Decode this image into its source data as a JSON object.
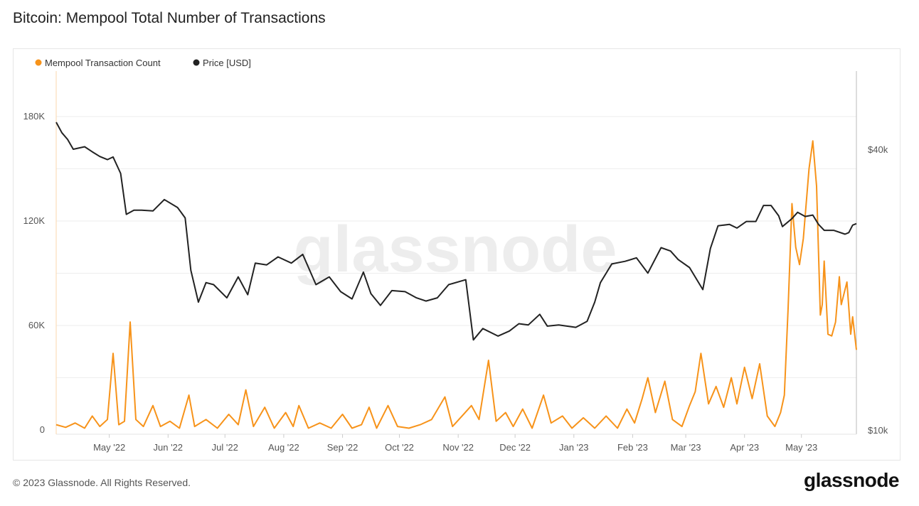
{
  "title": "Bitcoin: Mempool Total Number of Transactions",
  "footer": "© 2023 Glassnode. All Rights Reserved.",
  "logo": "glassnode",
  "watermark": "glassnode",
  "chart_data": {
    "type": "line",
    "title": "Bitcoin: Mempool Total Number of Transactions",
    "x_range": [
      "2022-04-03",
      "2023-05-30"
    ],
    "x_ticks": [
      {
        "date": "2022-05-01",
        "label": "May '22"
      },
      {
        "date": "2022-06-01",
        "label": "Jun '22"
      },
      {
        "date": "2022-07-01",
        "label": "Jul '22"
      },
      {
        "date": "2022-08-01",
        "label": "Aug '22"
      },
      {
        "date": "2022-09-01",
        "label": "Sep '22"
      },
      {
        "date": "2022-10-01",
        "label": "Oct '22"
      },
      {
        "date": "2022-11-01",
        "label": "Nov '22"
      },
      {
        "date": "2022-12-01",
        "label": "Dec '22"
      },
      {
        "date": "2023-01-01",
        "label": "Jan '23"
      },
      {
        "date": "2023-02-01",
        "label": "Feb '23"
      },
      {
        "date": "2023-03-01",
        "label": "Mar '23"
      },
      {
        "date": "2023-04-01",
        "label": "Apr '23"
      },
      {
        "date": "2023-05-01",
        "label": "May '23"
      }
    ],
    "y_left": {
      "scale": "linear",
      "range": [
        0,
        208000
      ],
      "ticks": [
        {
          "v": 0,
          "label": "0"
        },
        {
          "v": 60000,
          "label": "60K"
        },
        {
          "v": 120000,
          "label": "120K"
        },
        {
          "v": 180000,
          "label": "180K"
        }
      ]
    },
    "y_right": {
      "scale": "log",
      "range": [
        10000,
        53000
      ],
      "ticks": [
        {
          "v": 10000,
          "label": "$10k"
        },
        {
          "v": 40000,
          "label": "$40k"
        }
      ]
    },
    "grid": true,
    "legend_position": "top-left",
    "series": [
      {
        "name": "Mempool Transaction Count",
        "axis": "left",
        "color": "#f7931a",
        "points": [
          [
            "2022-04-03",
            3000
          ],
          [
            "2022-04-08",
            1500
          ],
          [
            "2022-04-13",
            4000
          ],
          [
            "2022-04-18",
            1000
          ],
          [
            "2022-04-22",
            8000
          ],
          [
            "2022-04-26",
            2000
          ],
          [
            "2022-04-30",
            6000
          ],
          [
            "2022-05-03",
            44000
          ],
          [
            "2022-05-06",
            3000
          ],
          [
            "2022-05-09",
            5000
          ],
          [
            "2022-05-12",
            62000
          ],
          [
            "2022-05-15",
            6000
          ],
          [
            "2022-05-19",
            2000
          ],
          [
            "2022-05-24",
            14000
          ],
          [
            "2022-05-28",
            2000
          ],
          [
            "2022-06-02",
            5000
          ],
          [
            "2022-06-07",
            1000
          ],
          [
            "2022-06-12",
            20000
          ],
          [
            "2022-06-15",
            2000
          ],
          [
            "2022-06-21",
            6000
          ],
          [
            "2022-06-27",
            1000
          ],
          [
            "2022-07-03",
            9000
          ],
          [
            "2022-07-08",
            3000
          ],
          [
            "2022-07-12",
            23000
          ],
          [
            "2022-07-16",
            2000
          ],
          [
            "2022-07-22",
            13000
          ],
          [
            "2022-07-27",
            1000
          ],
          [
            "2022-08-02",
            10000
          ],
          [
            "2022-08-06",
            2000
          ],
          [
            "2022-08-09",
            14000
          ],
          [
            "2022-08-14",
            1000
          ],
          [
            "2022-08-20",
            4000
          ],
          [
            "2022-08-26",
            1000
          ],
          [
            "2022-09-01",
            9000
          ],
          [
            "2022-09-06",
            1000
          ],
          [
            "2022-09-11",
            3000
          ],
          [
            "2022-09-15",
            13000
          ],
          [
            "2022-09-19",
            1000
          ],
          [
            "2022-09-25",
            14000
          ],
          [
            "2022-09-30",
            2000
          ],
          [
            "2022-10-06",
            1000
          ],
          [
            "2022-10-12",
            3000
          ],
          [
            "2022-10-18",
            6000
          ],
          [
            "2022-10-25",
            19000
          ],
          [
            "2022-10-29",
            2000
          ],
          [
            "2022-11-03",
            8000
          ],
          [
            "2022-11-08",
            14000
          ],
          [
            "2022-11-12",
            6000
          ],
          [
            "2022-11-17",
            40000
          ],
          [
            "2022-11-21",
            5000
          ],
          [
            "2022-11-26",
            10000
          ],
          [
            "2022-11-30",
            2000
          ],
          [
            "2022-12-05",
            12000
          ],
          [
            "2022-12-10",
            1000
          ],
          [
            "2022-12-16",
            20000
          ],
          [
            "2022-12-20",
            4000
          ],
          [
            "2022-12-26",
            8000
          ],
          [
            "2022-12-31",
            1000
          ],
          [
            "2023-01-06",
            7000
          ],
          [
            "2023-01-12",
            1000
          ],
          [
            "2023-01-18",
            8000
          ],
          [
            "2023-01-24",
            1000
          ],
          [
            "2023-01-29",
            12000
          ],
          [
            "2023-02-02",
            4000
          ],
          [
            "2023-02-06",
            18000
          ],
          [
            "2023-02-09",
            30000
          ],
          [
            "2023-02-13",
            10000
          ],
          [
            "2023-02-18",
            28000
          ],
          [
            "2023-02-22",
            6000
          ],
          [
            "2023-02-27",
            2000
          ],
          [
            "2023-03-03",
            14000
          ],
          [
            "2023-03-06",
            22000
          ],
          [
            "2023-03-09",
            44000
          ],
          [
            "2023-03-13",
            15000
          ],
          [
            "2023-03-17",
            25000
          ],
          [
            "2023-03-21",
            13000
          ],
          [
            "2023-03-25",
            30000
          ],
          [
            "2023-03-28",
            15000
          ],
          [
            "2023-04-01",
            36000
          ],
          [
            "2023-04-05",
            18000
          ],
          [
            "2023-04-09",
            38000
          ],
          [
            "2023-04-13",
            8000
          ],
          [
            "2023-04-17",
            2000
          ],
          [
            "2023-04-20",
            10000
          ],
          [
            "2023-04-22",
            20000
          ],
          [
            "2023-04-24",
            70000
          ],
          [
            "2023-04-26",
            130000
          ],
          [
            "2023-04-28",
            105000
          ],
          [
            "2023-04-30",
            95000
          ],
          [
            "2023-05-02",
            110000
          ],
          [
            "2023-05-05",
            150000
          ],
          [
            "2023-05-07",
            166000
          ],
          [
            "2023-05-09",
            140000
          ],
          [
            "2023-05-11",
            66000
          ],
          [
            "2023-05-12",
            72000
          ],
          [
            "2023-05-13",
            97000
          ],
          [
            "2023-05-15",
            55000
          ],
          [
            "2023-05-17",
            54000
          ],
          [
            "2023-05-19",
            62000
          ],
          [
            "2023-05-21",
            88000
          ],
          [
            "2023-05-22",
            72000
          ],
          [
            "2023-05-25",
            85000
          ],
          [
            "2023-05-27",
            55000
          ],
          [
            "2023-05-28",
            65000
          ],
          [
            "2023-05-30",
            46000
          ]
        ]
      },
      {
        "name": "Price [USD]",
        "axis": "right",
        "color": "#222222",
        "points": [
          [
            "2022-04-03",
            45700
          ],
          [
            "2022-04-06",
            43400
          ],
          [
            "2022-04-09",
            42000
          ],
          [
            "2022-04-12",
            40000
          ],
          [
            "2022-04-18",
            40500
          ],
          [
            "2022-04-22",
            39500
          ],
          [
            "2022-04-26",
            38600
          ],
          [
            "2022-04-30",
            38000
          ],
          [
            "2022-05-03",
            38500
          ],
          [
            "2022-05-07",
            35500
          ],
          [
            "2022-05-10",
            29000
          ],
          [
            "2022-05-14",
            29600
          ],
          [
            "2022-05-18",
            29600
          ],
          [
            "2022-05-24",
            29500
          ],
          [
            "2022-05-30",
            31200
          ],
          [
            "2022-06-06",
            30000
          ],
          [
            "2022-06-10",
            28500
          ],
          [
            "2022-06-13",
            22000
          ],
          [
            "2022-06-17",
            18800
          ],
          [
            "2022-06-21",
            20700
          ],
          [
            "2022-06-25",
            20500
          ],
          [
            "2022-07-02",
            19200
          ],
          [
            "2022-07-08",
            21300
          ],
          [
            "2022-07-13",
            19500
          ],
          [
            "2022-07-17",
            22800
          ],
          [
            "2022-07-23",
            22600
          ],
          [
            "2022-07-29",
            23500
          ],
          [
            "2022-08-05",
            22800
          ],
          [
            "2022-08-11",
            23800
          ],
          [
            "2022-08-18",
            20500
          ],
          [
            "2022-08-25",
            21300
          ],
          [
            "2022-08-31",
            19800
          ],
          [
            "2022-09-06",
            19100
          ],
          [
            "2022-09-12",
            21800
          ],
          [
            "2022-09-16",
            19600
          ],
          [
            "2022-09-21",
            18500
          ],
          [
            "2022-09-27",
            19900
          ],
          [
            "2022-10-04",
            19800
          ],
          [
            "2022-10-10",
            19200
          ],
          [
            "2022-10-15",
            18900
          ],
          [
            "2022-10-21",
            19200
          ],
          [
            "2022-10-27",
            20500
          ],
          [
            "2022-11-05",
            21000
          ],
          [
            "2022-11-09",
            15600
          ],
          [
            "2022-11-14",
            16500
          ],
          [
            "2022-11-22",
            15900
          ],
          [
            "2022-11-28",
            16300
          ],
          [
            "2022-12-03",
            16900
          ],
          [
            "2022-12-08",
            16800
          ],
          [
            "2022-12-14",
            17700
          ],
          [
            "2022-12-18",
            16700
          ],
          [
            "2022-12-24",
            16800
          ],
          [
            "2023-01-02",
            16600
          ],
          [
            "2023-01-08",
            17100
          ],
          [
            "2023-01-12",
            18800
          ],
          [
            "2023-01-15",
            20700
          ],
          [
            "2023-01-21",
            22700
          ],
          [
            "2023-01-28",
            23000
          ],
          [
            "2023-02-03",
            23400
          ],
          [
            "2023-02-09",
            21700
          ],
          [
            "2023-02-16",
            24600
          ],
          [
            "2023-02-21",
            24200
          ],
          [
            "2023-02-25",
            23200
          ],
          [
            "2023-03-03",
            22300
          ],
          [
            "2023-03-10",
            20000
          ],
          [
            "2023-03-14",
            24500
          ],
          [
            "2023-03-18",
            27400
          ],
          [
            "2023-03-24",
            27600
          ],
          [
            "2023-03-28",
            27100
          ],
          [
            "2023-04-02",
            28000
          ],
          [
            "2023-04-07",
            28000
          ],
          [
            "2023-04-11",
            30300
          ],
          [
            "2023-04-15",
            30300
          ],
          [
            "2023-04-19",
            28800
          ],
          [
            "2023-04-21",
            27300
          ],
          [
            "2023-04-26",
            28400
          ],
          [
            "2023-04-29",
            29300
          ],
          [
            "2023-05-03",
            28700
          ],
          [
            "2023-05-07",
            28900
          ],
          [
            "2023-05-10",
            27600
          ],
          [
            "2023-05-13",
            26800
          ],
          [
            "2023-05-18",
            26800
          ],
          [
            "2023-05-24",
            26300
          ],
          [
            "2023-05-26",
            26500
          ],
          [
            "2023-05-28",
            27500
          ],
          [
            "2023-05-30",
            27700
          ]
        ]
      }
    ]
  }
}
